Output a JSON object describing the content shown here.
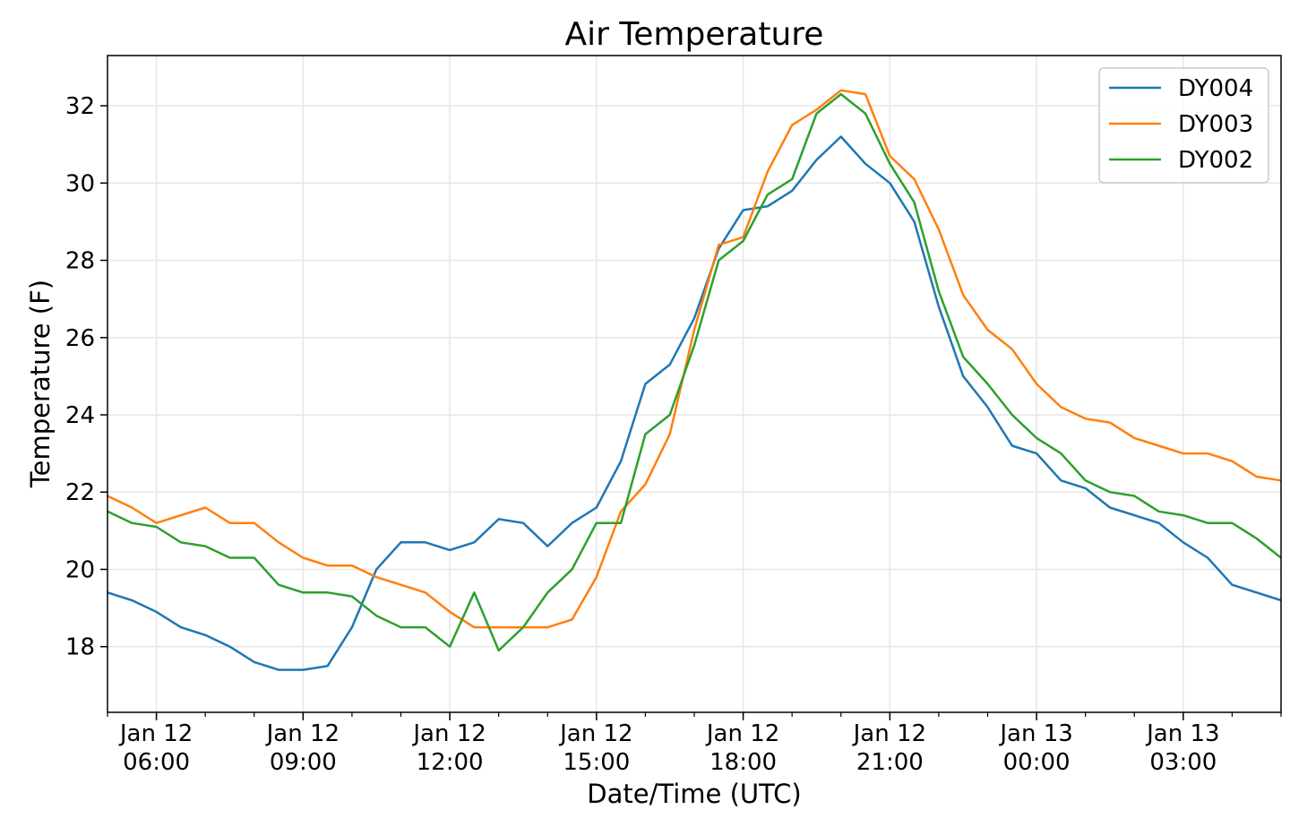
{
  "chart_data": {
    "type": "line",
    "title": "Air Temperature",
    "xlabel": "Date/Time (UTC)",
    "ylabel": "Temperature (F)",
    "x_unit": "hours since Jan 12 00:00 UTC",
    "xlim": [
      5.0,
      29.0
    ],
    "ylim": [
      16.3,
      33.3
    ],
    "grid": true,
    "legend_position": "top-right",
    "yticks": [
      18,
      20,
      22,
      24,
      26,
      28,
      30,
      32
    ],
    "xticks": [
      {
        "value": 6,
        "date": "Jan 12",
        "time": "06:00"
      },
      {
        "value": 9,
        "date": "Jan 12",
        "time": "09:00"
      },
      {
        "value": 12,
        "date": "Jan 12",
        "time": "12:00"
      },
      {
        "value": 15,
        "date": "Jan 12",
        "time": "15:00"
      },
      {
        "value": 18,
        "date": "Jan 12",
        "time": "18:00"
      },
      {
        "value": 21,
        "date": "Jan 12",
        "time": "21:00"
      },
      {
        "value": 24,
        "date": "Jan 13",
        "time": "00:00"
      },
      {
        "value": 27,
        "date": "Jan 13",
        "time": "03:00"
      }
    ],
    "x": [
      5.0,
      5.5,
      6.0,
      6.5,
      7.0,
      7.5,
      8.0,
      8.5,
      9.0,
      9.5,
      10.0,
      10.5,
      11.0,
      11.5,
      12.0,
      12.5,
      13.0,
      13.5,
      14.0,
      14.5,
      15.0,
      15.5,
      16.0,
      16.5,
      17.0,
      17.5,
      18.0,
      18.5,
      19.0,
      19.5,
      20.0,
      20.5,
      21.0,
      21.5,
      22.0,
      22.5,
      23.0,
      23.5,
      24.0,
      24.5,
      25.0,
      25.5,
      26.0,
      26.5,
      27.0,
      27.5,
      28.0,
      28.5,
      29.0
    ],
    "series": [
      {
        "name": "DY004",
        "color": "#1f77b4",
        "values": [
          19.4,
          19.2,
          18.9,
          18.5,
          18.3,
          18.0,
          17.6,
          17.4,
          17.4,
          17.5,
          18.5,
          20.0,
          20.7,
          20.7,
          20.5,
          20.7,
          21.3,
          21.2,
          20.6,
          21.2,
          21.6,
          22.8,
          24.8,
          25.3,
          26.5,
          28.3,
          29.3,
          29.4,
          29.8,
          30.6,
          31.2,
          30.5,
          30.0,
          29.0,
          26.8,
          25.0,
          24.2,
          23.2,
          23.0,
          22.3,
          22.1,
          21.6,
          21.4,
          21.2,
          20.7,
          20.3,
          19.6,
          19.4,
          19.2
        ]
      },
      {
        "name": "DY003",
        "color": "#ff7f0e",
        "values": [
          21.9,
          21.6,
          21.2,
          21.4,
          21.6,
          21.2,
          21.2,
          20.7,
          20.3,
          20.1,
          20.1,
          19.8,
          19.6,
          19.4,
          18.9,
          18.5,
          18.5,
          18.5,
          18.5,
          18.7,
          19.8,
          21.5,
          22.2,
          23.5,
          26.2,
          28.4,
          28.6,
          30.3,
          31.5,
          31.9,
          32.4,
          32.3,
          30.7,
          30.1,
          28.8,
          27.1,
          26.2,
          25.7,
          24.8,
          24.2,
          23.9,
          23.8,
          23.4,
          23.2,
          23.0,
          23.0,
          22.8,
          22.4,
          22.3
        ]
      },
      {
        "name": "DY002",
        "color": "#2ca02c",
        "values": [
          21.5,
          21.2,
          21.1,
          20.7,
          20.6,
          20.3,
          20.3,
          19.6,
          19.4,
          19.4,
          19.3,
          18.8,
          18.5,
          18.5,
          18.0,
          19.4,
          17.9,
          18.5,
          19.4,
          20.0,
          21.2,
          21.2,
          23.5,
          24.0,
          25.8,
          28.0,
          28.5,
          29.7,
          30.1,
          31.8,
          32.3,
          31.8,
          30.5,
          29.5,
          27.2,
          25.5,
          24.8,
          24.0,
          23.4,
          23.0,
          22.3,
          22.0,
          21.9,
          21.5,
          21.4,
          21.2,
          21.2,
          20.8,
          20.3
        ]
      }
    ]
  }
}
